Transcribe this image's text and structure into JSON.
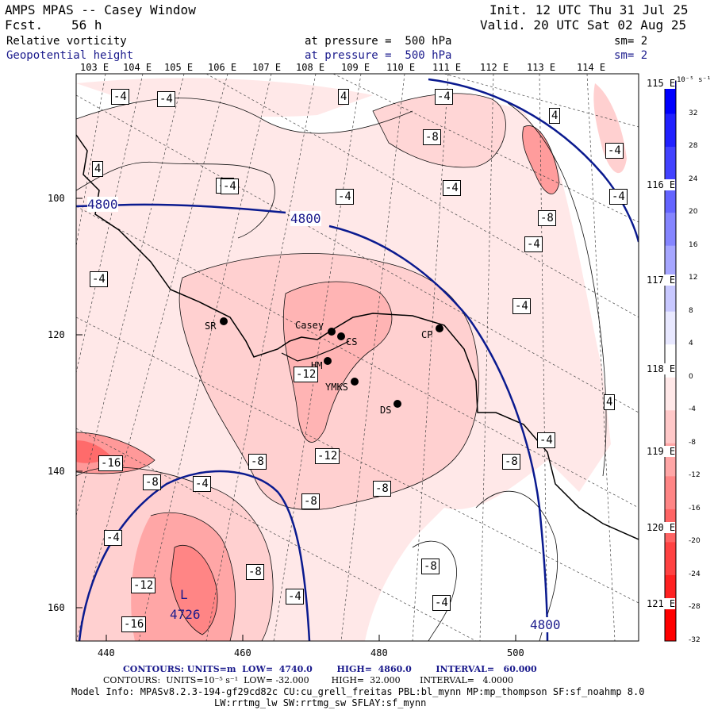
{
  "header": {
    "title": "AMPS MPAS -- Casey Window",
    "fcst_label": "Fcst.",
    "fcst_value": "56 h",
    "init": "Init. 12 UTC Thu 31 Jul 25",
    "valid": "Valid. 20 UTC Sat 02 Aug 25",
    "field1_name": "Relative vorticity",
    "field1_level": "at pressure =  500 hPa",
    "field1_sm": "sm= 2",
    "field2_name": "Geopotential height",
    "field2_level": "at pressure =  500 hPa",
    "field2_sm": "sm= 2"
  },
  "top_lon_labels": [
    "103 E",
    "104 E",
    "105 E",
    "106 E",
    "107 E",
    "108 E",
    "109 E",
    "110 E",
    "111 E",
    "112 E",
    "113 E",
    "114 E"
  ],
  "right_lon_labels": [
    "115 E",
    "116 E",
    "117 E",
    "118 E",
    "119 E",
    "120 E",
    "121 E"
  ],
  "left_axis_labels": [
    "100",
    "120",
    "140",
    "160"
  ],
  "bottom_axis_labels": [
    "440",
    "460",
    "480",
    "500"
  ],
  "stations": [
    {
      "name": "SR"
    },
    {
      "name": "Casey"
    },
    {
      "name": "CS"
    },
    {
      "name": "CP"
    },
    {
      "name": "HM"
    },
    {
      "name": "YMKS"
    },
    {
      "name": "DS"
    }
  ],
  "vort_labels": [
    "-4",
    "-4",
    "4",
    "-4",
    "4",
    "-4",
    "4",
    "-4",
    "-4",
    "-8",
    "-4",
    "-8",
    "-4",
    "-4",
    "-4",
    "-12",
    "-12",
    "-8",
    "-8",
    "-8",
    "-4",
    "-16",
    "-8",
    "-4",
    "-8",
    "-4",
    "-12",
    "-8",
    "-4",
    "-16",
    "-8",
    "-4",
    "4",
    "-4",
    "-4"
  ],
  "height_labels": [
    "4800",
    "4800",
    "4800",
    "4726"
  ],
  "low_marker": "L",
  "colorbar": {
    "unit": "10⁻⁵ s⁻¹",
    "ticks": [
      "32",
      "28",
      "24",
      "20",
      "16",
      "12",
      "8",
      "4",
      "0",
      "-4",
      "-8",
      "-12",
      "-16",
      "-20",
      "-24",
      "-28",
      "-32"
    ],
    "colors": [
      "#0000ff",
      "#2121ff",
      "#4242ff",
      "#6464ff",
      "#8585ff",
      "#a6a6ff",
      "#c8c8ff",
      "#e8e8ff",
      "#ffffff",
      "#ffe8e8",
      "#ffc8c8",
      "#ffa6a6",
      "#ff8585",
      "#ff6464",
      "#ff4242",
      "#ff2121",
      "#ff0000"
    ]
  },
  "footer": {
    "contours1": "CONTOURS: UNITS=m  LOW=  4740.0        HIGH=  4860.0        INTERVAL=   60.000",
    "contours2": "CONTOURS:  UNITS=10⁻⁵ s⁻¹  LOW= -32.000        HIGH=  32.000       INTERVAL=   4.0000",
    "model_info": "Model Info: MPASv8.2.3-194-gf29cd82c CU:cu_grell_freitas PBL:bl_mynn MP:mp_thompson SF:sf_noahmp 8.0",
    "model_info2": "LW:rrtmg_lw SW:rrtmg_sw SFLAY:sf_mynn"
  }
}
